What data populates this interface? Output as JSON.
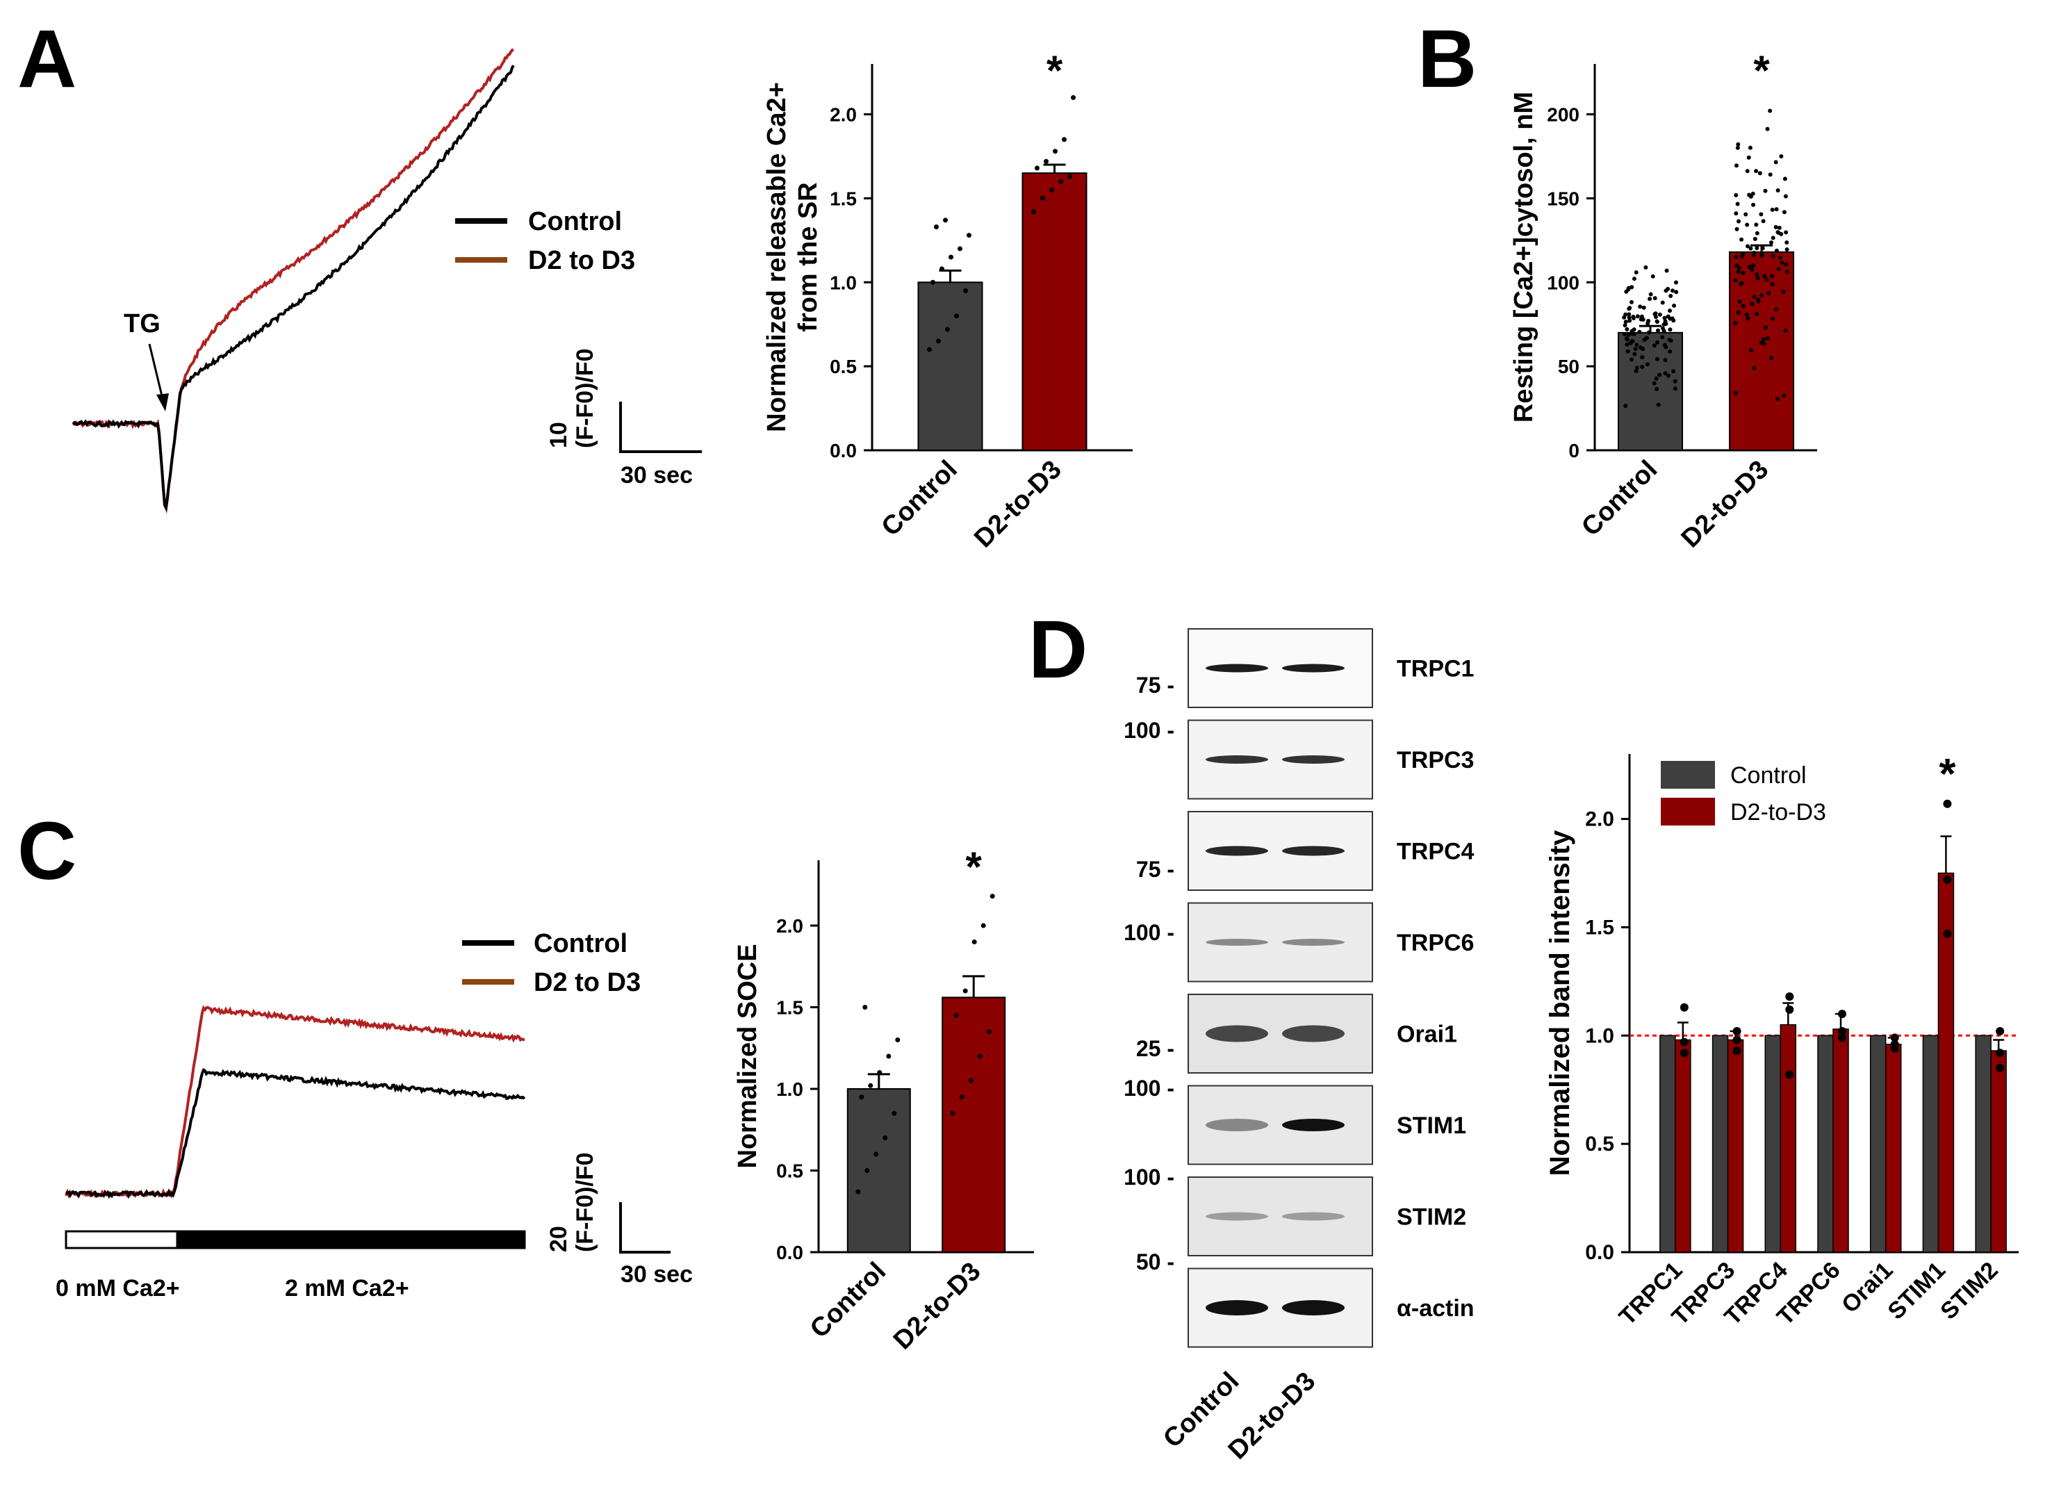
{
  "colors": {
    "control": "#3f3f3f",
    "treated": "#8b0000",
    "trace_control": "#000000",
    "trace_treated": "#b22222",
    "legend_treated_line": "#8b4513",
    "dashed": "#ff0000"
  },
  "panels": {
    "a": "A",
    "b": "B",
    "c": "C",
    "d": "D"
  },
  "trace_a": {
    "legend": [
      "Control",
      "D2 to D3"
    ],
    "annotation": "TG",
    "scale_y_number": "10",
    "scale_y_unit": "(F-F0)/F0",
    "scale_x": "30 sec"
  },
  "trace_c": {
    "legend": [
      "Control",
      "D2 to D3"
    ],
    "scale_y_number": "20",
    "scale_y_unit": "(F-F0)/F0",
    "scale_x": "30 sec",
    "bath_labels": [
      "0 mM Ca2+",
      "2 mM Ca2+"
    ]
  },
  "blot": {
    "proteins": [
      "TRPC1",
      "TRPC3",
      "TRPC4",
      "TRPC6",
      "Orai1",
      "STIM1",
      "STIM2",
      "α-actin"
    ],
    "markers": [
      "75 -",
      "100 -",
      "75 -",
      "100 -",
      "25 -",
      "100 -",
      "100 -",
      "50 -"
    ],
    "lanes": [
      "Control",
      "D2-to-D3"
    ]
  },
  "chart_data": [
    {
      "id": "releasable-ca",
      "type": "bar",
      "ylabel_line1": "Normalized releasable Ca2+",
      "ylabel_line2": "from the SR",
      "categories": [
        "Control",
        "D2-to-D3"
      ],
      "values": [
        1.0,
        1.65
      ],
      "errors": [
        0.07,
        0.05
      ],
      "ylim": [
        0,
        2.3
      ],
      "yticks": [
        "0.0",
        "0.5",
        "1.0",
        "1.5",
        "2.0"
      ],
      "significance": "*",
      "points": [
        [
          0.6,
          0.65,
          0.72,
          0.8,
          0.95,
          1.0,
          1.08,
          1.15,
          1.2,
          1.28,
          1.33,
          1.37
        ],
        [
          1.42,
          1.5,
          1.55,
          1.6,
          1.63,
          1.68,
          1.72,
          1.78,
          1.85,
          2.1
        ]
      ]
    },
    {
      "id": "resting-ca",
      "type": "bar",
      "ylabel": "Resting [Ca2+]cytosol, nM",
      "categories": [
        "Control",
        "D2-to-D3"
      ],
      "values": [
        70,
        118
      ],
      "errors": [
        4,
        4
      ],
      "ylim": [
        0,
        230
      ],
      "yticks": [
        "0",
        "50",
        "100",
        "150",
        "200"
      ],
      "significance": "*"
    },
    {
      "id": "soce",
      "type": "bar",
      "ylabel": "Normalized SOCE",
      "categories": [
        "Control",
        "D2-to-D3"
      ],
      "values": [
        1.0,
        1.56
      ],
      "errors": [
        0.09,
        0.13
      ],
      "ylim": [
        0,
        2.4
      ],
      "yticks": [
        "0.0",
        "0.5",
        "1.0",
        "1.5",
        "2.0"
      ],
      "significance": "*",
      "points": [
        [
          0.37,
          0.5,
          0.6,
          0.7,
          0.85,
          0.95,
          1.02,
          1.1,
          1.2,
          1.3,
          1.5
        ],
        [
          0.85,
          0.95,
          1.05,
          1.2,
          1.35,
          1.45,
          1.6,
          1.9,
          2.0,
          2.18
        ]
      ]
    },
    {
      "id": "band-intensity",
      "type": "bar",
      "ylabel": "Normalized band intensity",
      "categories": [
        "TRPC1",
        "TRPC3",
        "TRPC4",
        "TRPC6",
        "Orai1",
        "STIM1",
        "STIM2"
      ],
      "legend": [
        "Control",
        "D2-to-D3"
      ],
      "series": [
        {
          "name": "Control",
          "values": [
            1.0,
            1.0,
            1.0,
            1.0,
            1.0,
            1.0,
            1.0
          ],
          "errors": [
            0,
            0,
            0,
            0,
            0,
            0,
            0
          ]
        },
        {
          "name": "D2-to-D3",
          "values": [
            0.98,
            0.98,
            1.05,
            1.03,
            0.96,
            1.75,
            0.93
          ],
          "errors": [
            0.08,
            0.04,
            0.1,
            0.07,
            0.03,
            0.17,
            0.05
          ]
        }
      ],
      "points": [
        [
          1.13,
          0.97,
          0.92
        ],
        [
          1.02,
          0.98,
          0.93
        ],
        [
          1.18,
          1.12,
          0.82
        ],
        [
          1.1,
          1.02,
          0.99
        ],
        [
          0.99,
          0.96,
          0.94
        ],
        [
          2.07,
          1.72,
          1.47
        ],
        [
          1.02,
          0.92,
          0.85
        ]
      ],
      "ylim": [
        0,
        2.3
      ],
      "yticks": [
        "0.0",
        "0.5",
        "1.0",
        "1.5",
        "2.0"
      ],
      "reference_line": 1.0,
      "significance": "*",
      "significance_category": "STIM1"
    }
  ]
}
